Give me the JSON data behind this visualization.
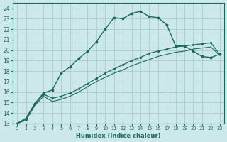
{
  "xlabel": "Humidex (Indice chaleur)",
  "bg_color": "#cce8e8",
  "line_color": "#1a6b5a",
  "grid_color": "#aacccc",
  "xlim": [
    -0.5,
    23.5
  ],
  "ylim": [
    13,
    24.5
  ],
  "xticks": [
    0,
    1,
    2,
    3,
    4,
    5,
    6,
    7,
    8,
    9,
    10,
    11,
    12,
    13,
    14,
    15,
    16,
    17,
    18,
    19,
    20,
    21,
    22,
    23
  ],
  "yticks": [
    13,
    14,
    15,
    16,
    17,
    18,
    19,
    20,
    21,
    22,
    23,
    24
  ],
  "curve1_x": [
    0,
    1,
    2,
    3,
    4,
    5,
    6,
    7,
    8,
    9,
    10,
    11,
    12,
    13,
    14,
    15,
    16,
    17,
    18,
    19,
    20,
    21,
    22,
    23
  ],
  "curve1_y": [
    13.0,
    13.5,
    14.9,
    15.9,
    16.2,
    17.8,
    18.4,
    19.2,
    19.9,
    20.8,
    22.0,
    23.1,
    23.0,
    23.5,
    23.7,
    23.2,
    23.1,
    22.4,
    20.4,
    20.4,
    19.9,
    19.4,
    19.3,
    19.6
  ],
  "curve2_x": [
    0,
    1,
    2,
    3,
    4,
    5,
    6,
    7,
    8,
    9,
    10,
    11,
    12,
    13,
    14,
    15,
    16,
    17,
    18,
    19,
    20,
    21,
    22,
    23
  ],
  "curve2_y": [
    13.0,
    13.4,
    14.8,
    15.8,
    15.4,
    15.6,
    15.9,
    16.3,
    16.8,
    17.3,
    17.8,
    18.2,
    18.6,
    19.0,
    19.3,
    19.7,
    19.9,
    20.1,
    20.3,
    20.4,
    20.5,
    20.6,
    20.7,
    19.6
  ],
  "curve3_x": [
    0,
    1,
    2,
    3,
    4,
    5,
    6,
    7,
    8,
    9,
    10,
    11,
    12,
    13,
    14,
    15,
    16,
    17,
    18,
    19,
    20,
    21,
    22,
    23
  ],
  "curve3_y": [
    13.0,
    13.3,
    14.7,
    15.6,
    15.1,
    15.3,
    15.6,
    16.0,
    16.5,
    17.0,
    17.4,
    17.8,
    18.1,
    18.5,
    18.8,
    19.1,
    19.4,
    19.6,
    19.8,
    19.9,
    20.1,
    20.2,
    20.3,
    19.5
  ]
}
